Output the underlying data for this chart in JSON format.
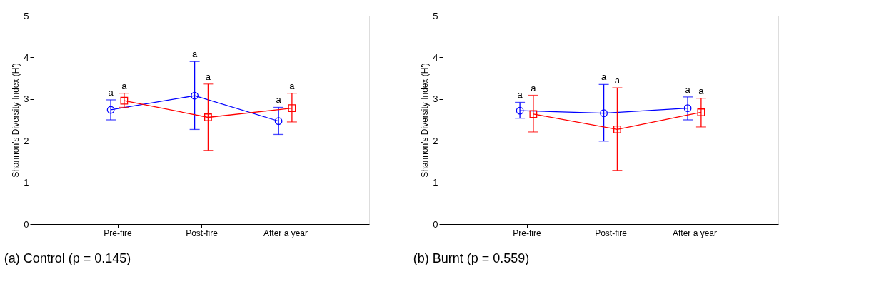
{
  "chart_data": [
    {
      "type": "line",
      "title": "(a) Control (p = 0.145)",
      "ylabel": "Shannon's Diversity Index (H')",
      "categories": [
        "Pre-fire",
        "Post-fire",
        "After a year"
      ],
      "ylim": [
        0,
        5
      ],
      "yticks": [
        0,
        1,
        2,
        3,
        4,
        5
      ],
      "grid": false,
      "legend": false,
      "line_style": "solid",
      "series": [
        {
          "color": "#0000ff",
          "marker": "circle",
          "values": [
            2.74,
            3.08,
            2.47
          ],
          "errors": [
            [
              2.5,
              2.98
            ],
            [
              2.27,
              3.9
            ],
            [
              2.15,
              2.8
            ]
          ]
        },
        {
          "color": "#ff0000",
          "marker": "square",
          "values": [
            2.96,
            2.56,
            2.78
          ],
          "errors": [
            [
              2.8,
              3.14
            ],
            [
              1.77,
              3.36
            ],
            [
              2.45,
              3.14
            ]
          ]
        }
      ],
      "annotations": [
        "a",
        "a",
        "a",
        "a",
        "a",
        "a"
      ]
    },
    {
      "type": "line",
      "title": "(b) Burnt (p = 0.559)",
      "ylabel": "Shannon's Diversity Index (H')",
      "categories": [
        "Pre-fire",
        "Post-fire",
        "After a year"
      ],
      "ylim": [
        0,
        5
      ],
      "yticks": [
        0,
        1,
        2,
        3,
        4,
        5
      ],
      "grid": false,
      "legend": false,
      "line_style": "solid",
      "series": [
        {
          "color": "#0000ff",
          "marker": "circle",
          "values": [
            2.72,
            2.66,
            2.78
          ],
          "errors": [
            [
              2.54,
              2.92
            ],
            [
              1.99,
              3.35
            ],
            [
              2.5,
              3.05
            ]
          ]
        },
        {
          "color": "#ff0000",
          "marker": "square",
          "values": [
            2.64,
            2.27,
            2.68
          ],
          "errors": [
            [
              2.21,
              3.09
            ],
            [
              1.29,
              3.27
            ],
            [
              2.33,
              3.02
            ]
          ]
        }
      ],
      "annotations": [
        "a",
        "a",
        "a",
        "a",
        "a",
        "a"
      ]
    }
  ]
}
